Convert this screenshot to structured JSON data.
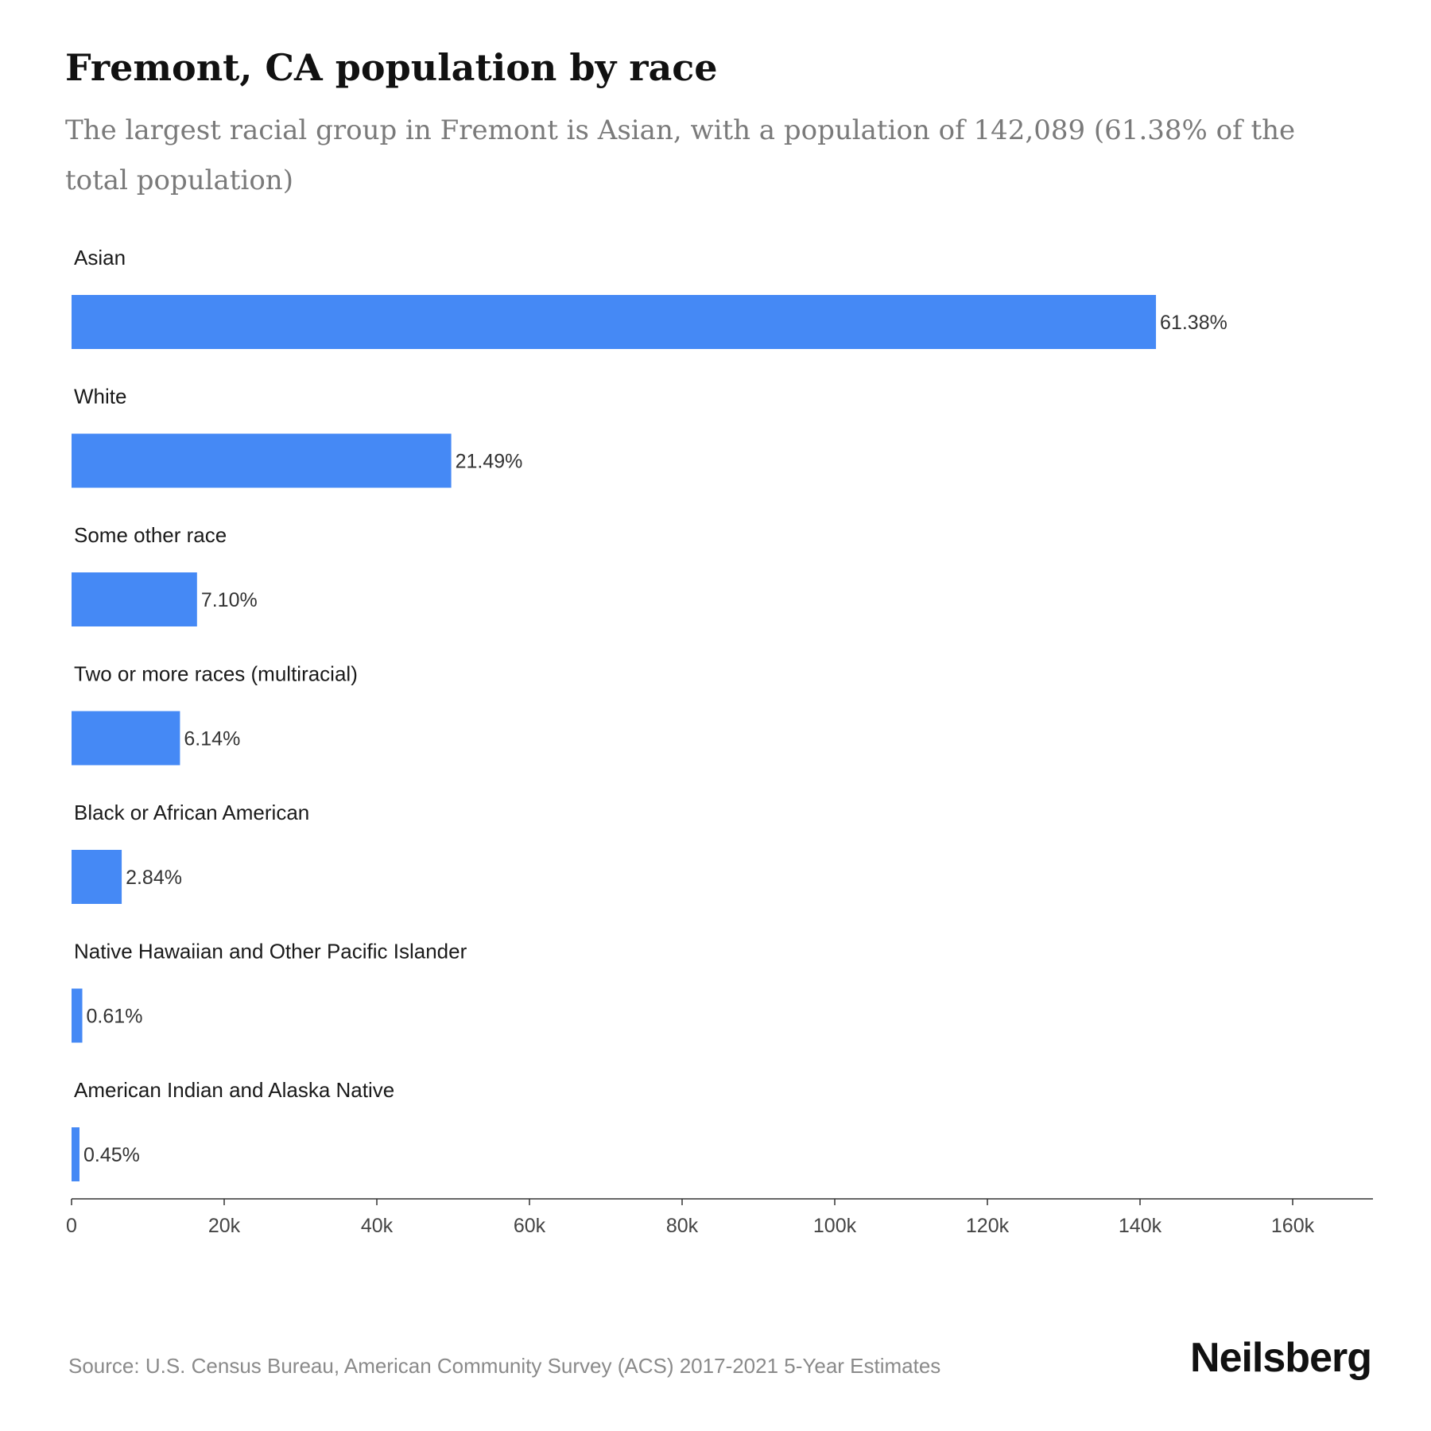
{
  "chart_data": {
    "type": "bar",
    "orientation": "horizontal",
    "title": "Fremont, CA population by race",
    "subtitle": "The largest racial group in Fremont is Asian, with a population of 142,089 (61.38% of the total population)",
    "categories": [
      "Asian",
      "White",
      "Some other race",
      "Two or more races (multiracial)",
      "Black or African American",
      "Native Hawaiian and Other Pacific Islander",
      "American Indian and Alaska Native"
    ],
    "values": [
      142089,
      49750,
      16440,
      14210,
      6570,
      1410,
      1040
    ],
    "data_labels": [
      "61.38%",
      "21.49%",
      "7.10%",
      "6.14%",
      "2.84%",
      "0.61%",
      "0.45%"
    ],
    "xlim": [
      0,
      170000
    ],
    "x_ticks": [
      0,
      20000,
      40000,
      60000,
      80000,
      100000,
      120000,
      140000,
      160000
    ],
    "x_tick_labels": [
      "0",
      "20k",
      "40k",
      "60k",
      "80k",
      "100k",
      "120k",
      "140k",
      "160k"
    ],
    "bar_color": "#4589f5",
    "grid": false,
    "legend": "none"
  },
  "footer": {
    "source": "Source: U.S. Census Bureau, American Community Survey (ACS) 2017-2021 5-Year Estimates",
    "brand": "Neilsberg"
  }
}
